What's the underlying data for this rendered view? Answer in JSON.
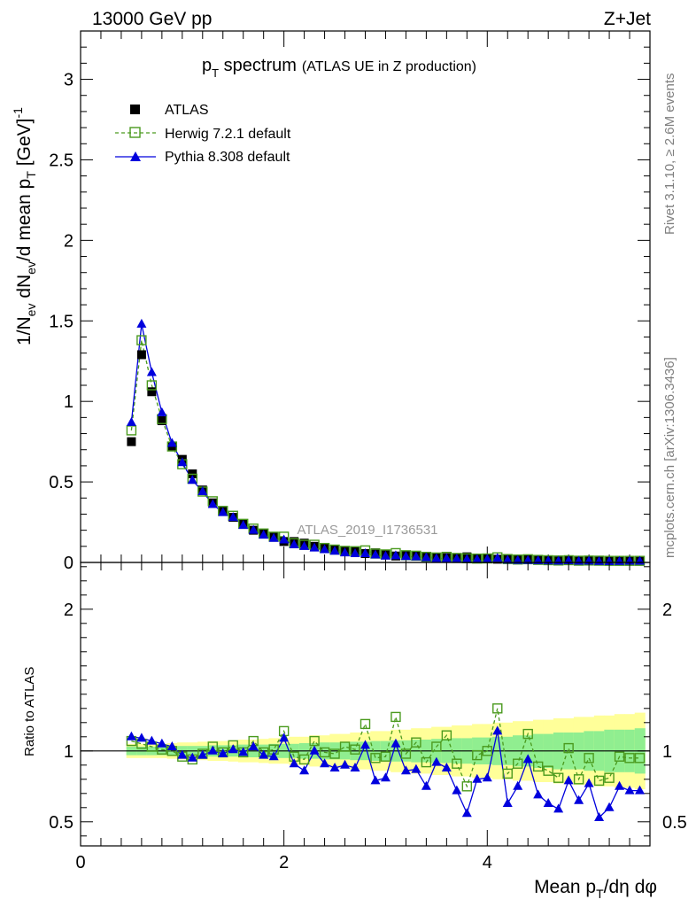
{
  "header": {
    "left_label": "13000 GeV pp",
    "right_label": "Z+Jet"
  },
  "side_labels": {
    "rivet": "Rivet 3.1.10, ≥ 2.6M events",
    "mcplots": "mcplots.cern.ch [arXiv:1306.3436]"
  },
  "chart_data": [
    {
      "type": "scatter",
      "title_main": "p",
      "title_main_sub": "T",
      "title_main_rest": " spectrum",
      "title_note": "(ATLAS UE in Z production)",
      "ylabel": "1/N_ev dN_ev/d mean p_T [GeV]^-1",
      "xlim": [
        0,
        5.6
      ],
      "ylim": [
        0,
        3.3
      ],
      "yticks": [
        0,
        0.5,
        1,
        1.5,
        2,
        2.5,
        3
      ],
      "ytick_labels": [
        "0",
        "0.5",
        "1",
        "1.5",
        "2",
        "2.5",
        "3"
      ],
      "watermark": "ATLAS_2019_I1736531",
      "legend_position": "top-left",
      "series": [
        {
          "name": "ATLAS",
          "color": "#000000",
          "marker": "square-filled",
          "x": [
            0.5,
            0.6,
            0.7,
            0.8,
            0.9,
            1.0,
            1.1,
            1.2,
            1.3,
            1.4,
            1.5,
            1.6,
            1.7,
            1.8,
            1.9,
            2.0,
            2.1,
            2.2,
            2.3,
            2.4,
            2.5,
            2.6,
            2.7,
            2.8,
            2.9,
            3.0,
            3.1,
            3.2,
            3.3,
            3.4,
            3.5,
            3.6,
            3.7,
            3.8,
            3.9,
            4.0,
            4.1,
            4.2,
            4.3,
            4.4,
            4.5,
            4.6,
            4.7,
            4.8,
            4.9,
            5.0,
            5.1,
            5.2,
            5.3,
            5.4,
            5.5
          ],
          "values": [
            0.75,
            1.29,
            1.06,
            0.88,
            0.72,
            0.64,
            0.55,
            0.45,
            0.37,
            0.32,
            0.28,
            0.24,
            0.2,
            0.18,
            0.16,
            0.13,
            0.13,
            0.12,
            0.1,
            0.09,
            0.08,
            0.07,
            0.07,
            0.055,
            0.06,
            0.05,
            0.04,
            0.045,
            0.04,
            0.035,
            0.03,
            0.03,
            0.03,
            0.035,
            0.025,
            0.025,
            0.02,
            0.025,
            0.02,
            0.017,
            0.018,
            0.016,
            0.015,
            0.016,
            0.013,
            0.013,
            0.014,
            0.012,
            0.012,
            0.011,
            0.011
          ]
        },
        {
          "name": "Herwig 7.2.1 default",
          "color": "#4a9a1e",
          "marker": "square-open",
          "line": "dashed",
          "x": [
            0.5,
            0.6,
            0.7,
            0.8,
            0.9,
            1.0,
            1.1,
            1.2,
            1.3,
            1.4,
            1.5,
            1.6,
            1.7,
            1.8,
            1.9,
            2.0,
            2.1,
            2.2,
            2.3,
            2.4,
            2.5,
            2.6,
            2.7,
            2.8,
            2.9,
            3.0,
            3.1,
            3.2,
            3.3,
            3.4,
            3.5,
            3.6,
            3.7,
            3.8,
            3.9,
            4.0,
            4.1,
            4.2,
            4.3,
            4.4,
            4.5,
            4.6,
            4.7,
            4.8,
            4.9,
            5.0,
            5.1,
            5.2,
            5.3,
            5.4,
            5.5
          ],
          "values": [
            0.82,
            1.38,
            1.1,
            0.89,
            0.72,
            0.61,
            0.52,
            0.44,
            0.38,
            0.32,
            0.29,
            0.24,
            0.21,
            0.18,
            0.16,
            0.16,
            0.12,
            0.11,
            0.11,
            0.09,
            0.08,
            0.072,
            0.07,
            0.075,
            0.055,
            0.05,
            0.058,
            0.045,
            0.042,
            0.035,
            0.031,
            0.035,
            0.028,
            0.026,
            0.024,
            0.025,
            0.032,
            0.021,
            0.018,
            0.02,
            0.016,
            0.014,
            0.012,
            0.014,
            0.011,
            0.012,
            0.011,
            0.01,
            0.01,
            0.01,
            0.01
          ]
        },
        {
          "name": "Pythia 8.308 default",
          "color": "#0000dd",
          "marker": "triangle-filled",
          "line": "solid",
          "x": [
            0.5,
            0.6,
            0.7,
            0.8,
            0.9,
            1.0,
            1.1,
            1.2,
            1.3,
            1.4,
            1.5,
            1.6,
            1.7,
            1.8,
            1.9,
            2.0,
            2.1,
            2.2,
            2.3,
            2.4,
            2.5,
            2.6,
            2.7,
            2.8,
            2.9,
            3.0,
            3.1,
            3.2,
            3.3,
            3.4,
            3.5,
            3.6,
            3.7,
            3.8,
            3.9,
            4.0,
            4.1,
            4.2,
            4.3,
            4.4,
            4.5,
            4.6,
            4.7,
            4.8,
            4.9,
            5.0,
            5.1,
            5.2,
            5.3,
            5.4,
            5.5
          ],
          "values": [
            0.87,
            1.48,
            1.18,
            0.93,
            0.74,
            0.62,
            0.51,
            0.44,
            0.36,
            0.31,
            0.28,
            0.23,
            0.2,
            0.17,
            0.15,
            0.14,
            0.11,
            0.1,
            0.09,
            0.08,
            0.07,
            0.06,
            0.055,
            0.055,
            0.047,
            0.04,
            0.042,
            0.037,
            0.035,
            0.03,
            0.025,
            0.025,
            0.022,
            0.02,
            0.019,
            0.02,
            0.026,
            0.015,
            0.013,
            0.013,
            0.012,
            0.01,
            0.009,
            0.011,
            0.008,
            0.009,
            0.007,
            0.006,
            0.007,
            0.008,
            0.008
          ]
        }
      ]
    },
    {
      "type": "scatter",
      "ylabel": "Ratio to ATLAS",
      "xlabel": "Mean p_T/dη dφ",
      "xlim": [
        0,
        5.6
      ],
      "ylim": [
        0.33,
        2.33
      ],
      "xticks": [
        0,
        2,
        4
      ],
      "xtick_labels": [
        "0",
        "2",
        "4"
      ],
      "yticks": [
        0.5,
        1,
        2
      ],
      "ytick_labels": [
        "0.5",
        "1",
        "2"
      ],
      "reference_line": 1,
      "band_x": [
        0.5,
        0.6,
        0.7,
        0.8,
        0.9,
        1.0,
        1.1,
        1.2,
        1.3,
        1.4,
        1.5,
        1.6,
        1.7,
        1.8,
        1.9,
        2.0,
        2.1,
        2.2,
        2.3,
        2.4,
        2.5,
        2.6,
        2.7,
        2.8,
        2.9,
        3.0,
        3.1,
        3.2,
        3.3,
        3.4,
        3.5,
        3.6,
        3.7,
        3.8,
        3.9,
        4.0,
        4.1,
        4.2,
        4.3,
        4.4,
        4.5,
        4.6,
        4.7,
        4.8,
        4.9,
        5.0,
        5.1,
        5.2,
        5.3,
        5.4,
        5.5
      ],
      "band_inner_halfwidth": [
        0.03,
        0.03,
        0.03,
        0.03,
        0.03,
        0.035,
        0.035,
        0.035,
        0.04,
        0.04,
        0.04,
        0.045,
        0.045,
        0.045,
        0.05,
        0.05,
        0.05,
        0.055,
        0.055,
        0.06,
        0.06,
        0.06,
        0.065,
        0.065,
        0.07,
        0.07,
        0.075,
        0.075,
        0.08,
        0.08,
        0.085,
        0.085,
        0.09,
        0.09,
        0.095,
        0.095,
        0.1,
        0.1,
        0.11,
        0.11,
        0.12,
        0.12,
        0.13,
        0.13,
        0.13,
        0.14,
        0.14,
        0.15,
        0.15,
        0.15,
        0.16
      ],
      "band_outer_halfwidth": [
        0.05,
        0.05,
        0.05,
        0.05,
        0.055,
        0.06,
        0.06,
        0.065,
        0.07,
        0.07,
        0.075,
        0.08,
        0.08,
        0.085,
        0.09,
        0.09,
        0.1,
        0.1,
        0.11,
        0.11,
        0.12,
        0.12,
        0.13,
        0.13,
        0.14,
        0.14,
        0.15,
        0.15,
        0.16,
        0.16,
        0.17,
        0.17,
        0.18,
        0.18,
        0.19,
        0.19,
        0.2,
        0.2,
        0.21,
        0.21,
        0.22,
        0.22,
        0.23,
        0.23,
        0.24,
        0.24,
        0.25,
        0.25,
        0.26,
        0.26,
        0.27
      ],
      "series": [
        {
          "name": "Herwig 7.2.1 default",
          "color": "#4a9a1e",
          "marker": "square-open",
          "line": "dashed",
          "x": [
            0.5,
            0.6,
            0.7,
            0.8,
            0.9,
            1.0,
            1.1,
            1.2,
            1.3,
            1.4,
            1.5,
            1.6,
            1.7,
            1.8,
            1.9,
            2.0,
            2.1,
            2.2,
            2.3,
            2.4,
            2.5,
            2.6,
            2.7,
            2.8,
            2.9,
            3.0,
            3.1,
            3.2,
            3.3,
            3.4,
            3.5,
            3.6,
            3.7,
            3.8,
            3.9,
            4.0,
            4.1,
            4.2,
            4.3,
            4.4,
            4.5,
            4.6,
            4.7,
            4.8,
            4.9,
            5.0,
            5.1,
            5.2,
            5.3,
            5.4,
            5.5
          ],
          "values": [
            1.07,
            1.05,
            1.03,
            1.01,
            1.0,
            0.96,
            0.94,
            0.98,
            1.03,
            0.99,
            1.04,
            0.99,
            1.07,
            0.99,
            1.01,
            1.14,
            0.96,
            0.94,
            1.07,
            0.99,
            0.98,
            1.03,
            1.01,
            1.19,
            0.95,
            0.96,
            1.24,
            0.98,
            1.06,
            0.92,
            1.03,
            1.11,
            0.91,
            0.75,
            0.97,
            1.0,
            1.3,
            0.84,
            0.91,
            1.12,
            0.89,
            0.86,
            0.81,
            1.02,
            0.8,
            0.95,
            0.79,
            0.81,
            0.96,
            0.95,
            0.95
          ]
        },
        {
          "name": "Pythia 8.308 default",
          "color": "#0000dd",
          "marker": "triangle-filled",
          "line": "solid",
          "x": [
            0.5,
            0.6,
            0.7,
            0.8,
            0.9,
            1.0,
            1.1,
            1.2,
            1.3,
            1.4,
            1.5,
            1.6,
            1.7,
            1.8,
            1.9,
            2.0,
            2.1,
            2.2,
            2.3,
            2.4,
            2.5,
            2.6,
            2.7,
            2.8,
            2.9,
            3.0,
            3.1,
            3.2,
            3.3,
            3.4,
            3.5,
            3.6,
            3.7,
            3.8,
            3.9,
            4.0,
            4.1,
            4.2,
            4.3,
            4.4,
            4.5,
            4.6,
            4.7,
            4.8,
            4.9,
            5.0,
            5.1,
            5.2,
            5.3,
            5.4,
            5.5
          ],
          "values": [
            1.1,
            1.09,
            1.07,
            1.05,
            1.03,
            0.97,
            0.95,
            0.97,
            1.0,
            0.98,
            1.01,
            0.99,
            1.03,
            0.97,
            0.96,
            1.09,
            0.91,
            0.86,
            1.0,
            0.91,
            0.88,
            0.9,
            0.88,
            1.04,
            0.79,
            0.81,
            1.05,
            0.86,
            0.87,
            0.75,
            0.92,
            0.88,
            0.72,
            0.56,
            0.8,
            0.81,
            1.14,
            0.63,
            0.75,
            0.94,
            0.69,
            0.63,
            0.59,
            0.79,
            0.65,
            0.77,
            0.53,
            0.6,
            0.75,
            0.72,
            0.72
          ]
        }
      ]
    }
  ],
  "colors": {
    "inner_band": "#90ee90",
    "outer_band": "#ffff99",
    "frame": "#000000",
    "side_text": "#7f7f7f"
  }
}
